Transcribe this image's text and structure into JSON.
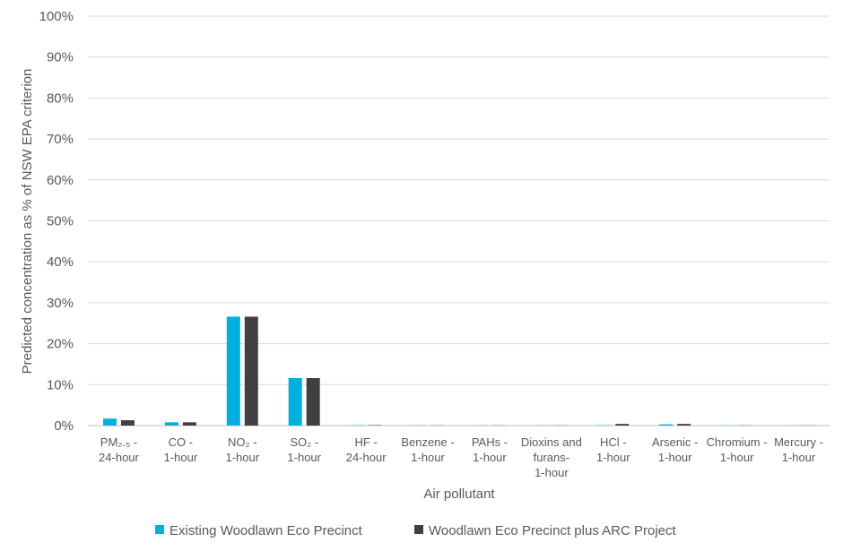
{
  "chart_data": {
    "type": "bar",
    "categories": [
      [
        "PM₂.₅ -",
        "24-hour"
      ],
      [
        "CO -",
        "1-hour"
      ],
      [
        "NO₂ -",
        "1-hour"
      ],
      [
        "SO₂ -",
        "1-hour"
      ],
      [
        "HF -",
        "24-hour"
      ],
      [
        "Benzene -",
        "1-hour"
      ],
      [
        "PAHs -",
        "1-hour"
      ],
      [
        "Dioxins and",
        "furans-",
        "1-hour"
      ],
      [
        "HCl -",
        "1-hour"
      ],
      [
        "Arsenic -",
        "1-hour"
      ],
      [
        "Chromium -",
        "1-hour"
      ],
      [
        "Mercury -",
        "1-hour"
      ]
    ],
    "series": [
      {
        "name": "Existing Woodlawn Eco Precinct",
        "color": "#00B0E0",
        "values": [
          1.7,
          0.8,
          26.6,
          11.6,
          0.1,
          0.05,
          0.05,
          0.05,
          0.1,
          0.3,
          0.05,
          0.05
        ]
      },
      {
        "name": "Woodlawn Eco Precinct plus ARC Project",
        "color": "#404040",
        "values": [
          1.3,
          0.8,
          26.6,
          11.6,
          0.1,
          0.05,
          0.05,
          0.05,
          0.4,
          0.4,
          0.05,
          0.05
        ]
      }
    ],
    "y_ticks": [
      "0%",
      "10%",
      "20%",
      "30%",
      "40%",
      "50%",
      "60%",
      "70%",
      "80%",
      "90%",
      "100%"
    ],
    "ylim": [
      0,
      100
    ],
    "xlabel": "Air pollutant",
    "ylabel": "Predicted concentration as % of NSW EPA criterion",
    "grid": true,
    "legend_position": "bottom"
  }
}
